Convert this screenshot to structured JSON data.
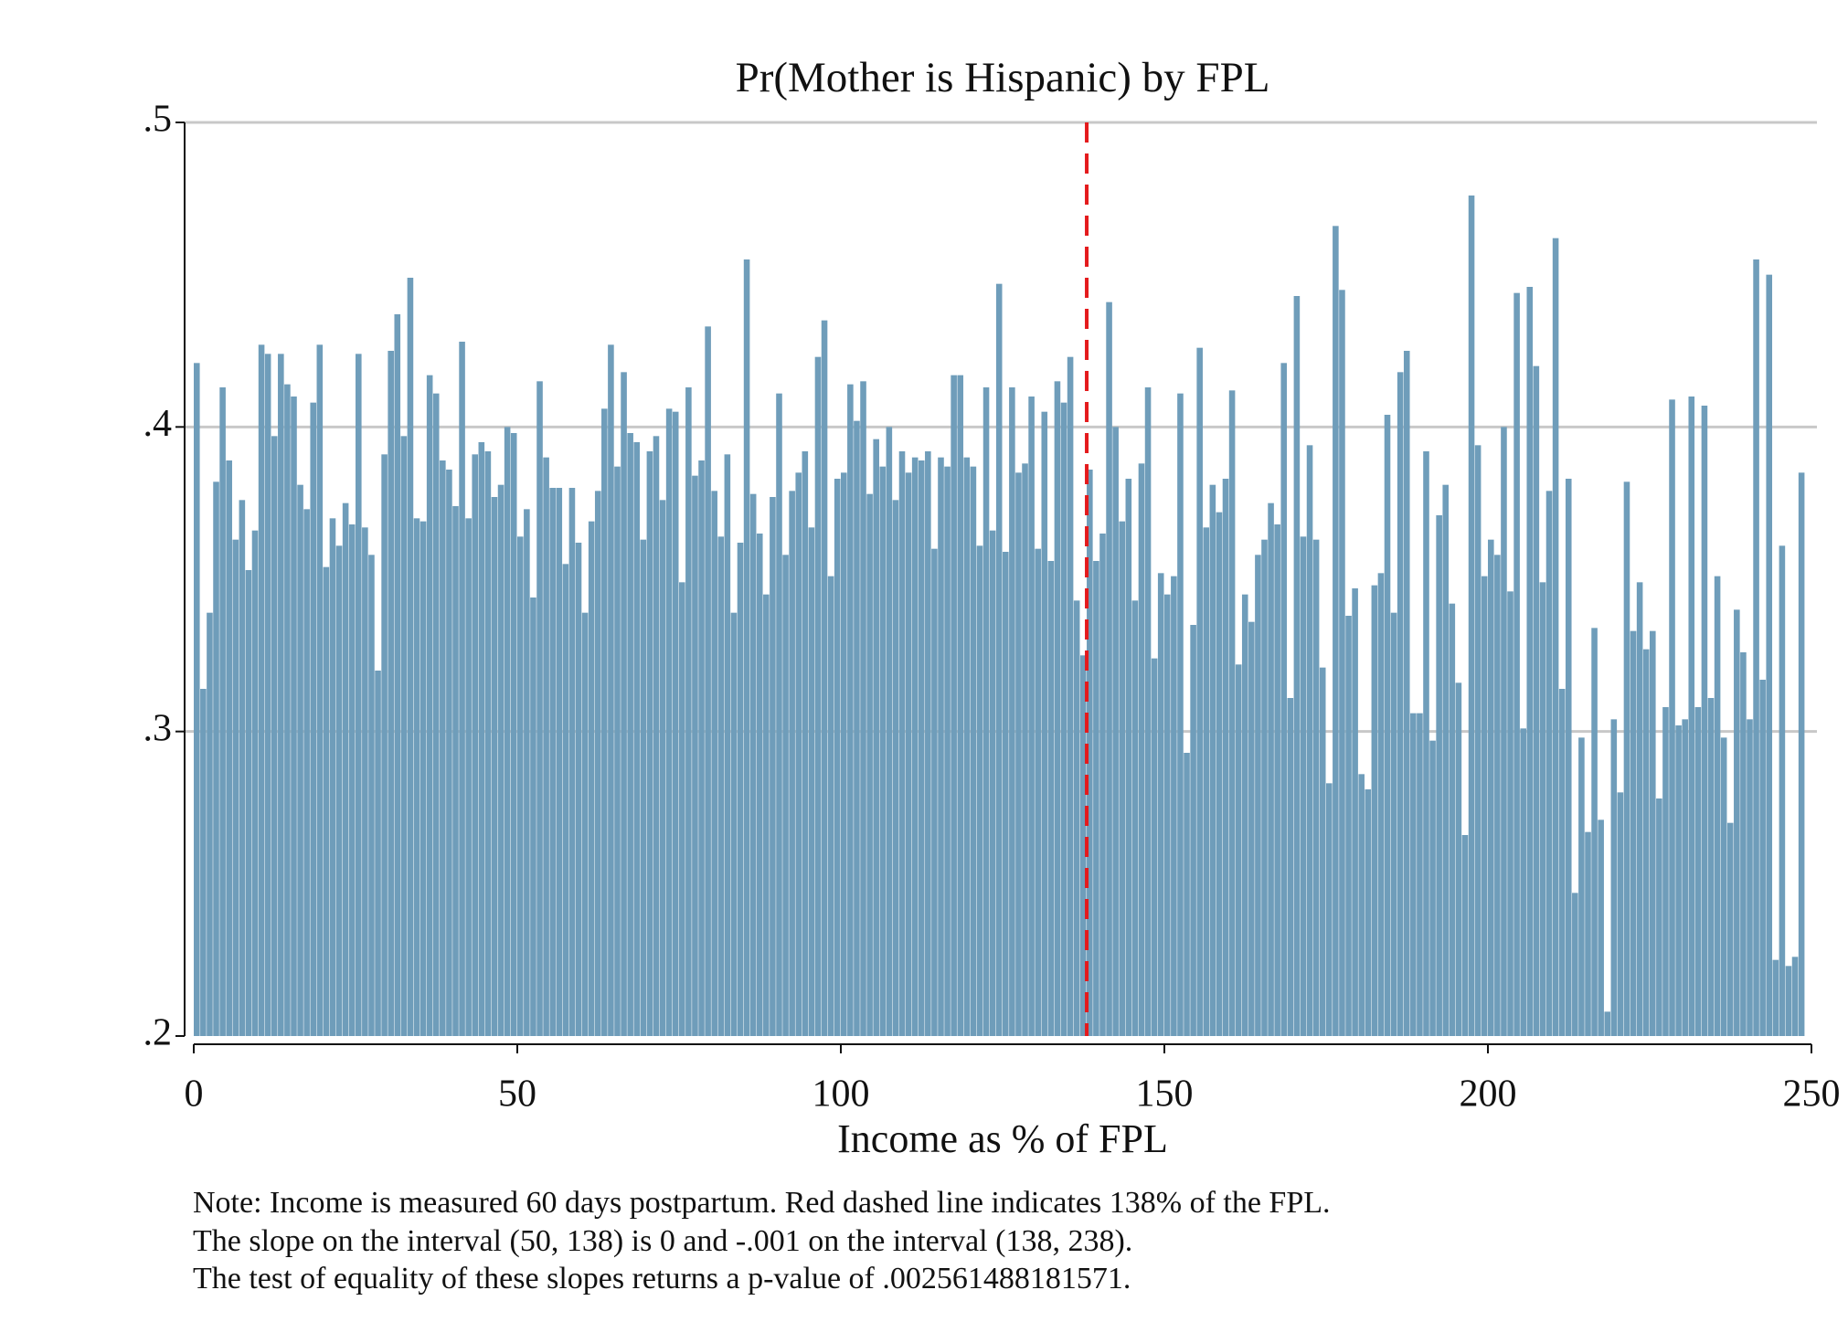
{
  "chart_data": {
    "type": "bar",
    "title": "Pr(Mother is Hispanic) by FPL",
    "xlabel": "Income as % of FPL",
    "notes": [
      "Note: Income is measured 60 days postpartum. Red dashed line indicates 138% of the FPL.",
      "The slope on the interval (50, 138) is 0 and -.001 on the interval (138, 238).",
      "The test of equality of these slopes returns a p-value of .002561488181571."
    ],
    "color": "#6f9dba",
    "x": [
      0,
      1,
      2,
      3,
      4,
      5,
      6,
      7,
      8,
      9,
      10,
      11,
      12,
      13,
      14,
      15,
      16,
      17,
      18,
      19,
      20,
      21,
      22,
      23,
      24,
      25,
      26,
      27,
      28,
      29,
      30,
      31,
      32,
      33,
      34,
      35,
      36,
      37,
      38,
      39,
      40,
      41,
      42,
      43,
      44,
      45,
      46,
      47,
      48,
      49,
      50,
      51,
      52,
      53,
      54,
      55,
      56,
      57,
      58,
      59,
      60,
      61,
      62,
      63,
      64,
      65,
      66,
      67,
      68,
      69,
      70,
      71,
      72,
      73,
      74,
      75,
      76,
      77,
      78,
      79,
      80,
      81,
      82,
      83,
      84,
      85,
      86,
      87,
      88,
      89,
      90,
      91,
      92,
      93,
      94,
      95,
      96,
      97,
      98,
      99,
      100,
      101,
      102,
      103,
      104,
      105,
      106,
      107,
      108,
      109,
      110,
      111,
      112,
      113,
      114,
      115,
      116,
      117,
      118,
      119,
      120,
      121,
      122,
      123,
      124,
      125,
      126,
      127,
      128,
      129,
      130,
      131,
      132,
      133,
      134,
      135,
      136,
      137,
      138,
      139,
      140,
      141,
      142,
      143,
      144,
      145,
      146,
      147,
      148,
      149,
      150,
      151,
      152,
      153,
      154,
      155,
      156,
      157,
      158,
      159,
      160,
      161,
      162,
      163,
      164,
      165,
      166,
      167,
      168,
      169,
      170,
      171,
      172,
      173,
      174,
      175,
      176,
      177,
      178,
      179,
      180,
      181,
      182,
      183,
      184,
      185,
      186,
      187,
      188,
      189,
      190,
      191,
      192,
      193,
      194,
      195,
      196,
      197,
      198,
      199,
      200,
      201,
      202,
      203,
      204,
      205,
      206,
      207,
      208,
      209,
      210,
      211,
      212,
      213,
      214,
      215,
      216,
      217,
      218,
      219,
      220,
      221,
      222,
      223,
      224,
      225,
      226,
      227,
      228,
      229,
      230,
      231,
      232,
      233,
      234,
      235,
      236,
      237,
      238,
      239,
      240,
      241,
      242,
      243,
      244,
      245,
      246,
      247,
      248
    ],
    "values": [
      0.421,
      0.314,
      0.339,
      0.382,
      0.413,
      0.389,
      0.363,
      0.376,
      0.353,
      0.366,
      0.427,
      0.424,
      0.397,
      0.424,
      0.414,
      0.41,
      0.381,
      0.373,
      0.408,
      0.427,
      0.354,
      0.37,
      0.361,
      0.375,
      0.368,
      0.424,
      0.367,
      0.358,
      0.32,
      0.391,
      0.425,
      0.437,
      0.397,
      0.449,
      0.37,
      0.369,
      0.417,
      0.411,
      0.389,
      0.386,
      0.374,
      0.428,
      0.37,
      0.391,
      0.395,
      0.392,
      0.377,
      0.381,
      0.4,
      0.398,
      0.364,
      0.373,
      0.344,
      0.415,
      0.39,
      0.38,
      0.38,
      0.355,
      0.38,
      0.362,
      0.339,
      0.369,
      0.379,
      0.406,
      0.427,
      0.387,
      0.418,
      0.398,
      0.395,
      0.363,
      0.392,
      0.397,
      0.376,
      0.406,
      0.405,
      0.349,
      0.413,
      0.384,
      0.389,
      0.433,
      0.379,
      0.364,
      0.391,
      0.339,
      0.362,
      0.455,
      0.378,
      0.365,
      0.345,
      0.377,
      0.411,
      0.358,
      0.379,
      0.385,
      0.392,
      0.367,
      0.423,
      0.435,
      0.351,
      0.383,
      0.385,
      0.414,
      0.402,
      0.415,
      0.378,
      0.396,
      0.387,
      0.4,
      0.376,
      0.392,
      0.385,
      0.39,
      0.389,
      0.392,
      0.36,
      0.39,
      0.387,
      0.417,
      0.417,
      0.39,
      0.387,
      0.361,
      0.413,
      0.366,
      0.447,
      0.359,
      0.413,
      0.385,
      0.388,
      0.41,
      0.36,
      0.405,
      0.356,
      0.415,
      0.408,
      0.423,
      0.343,
      0.325,
      0.386,
      0.356,
      0.365,
      0.441,
      0.4,
      0.369,
      0.383,
      0.343,
      0.388,
      0.413,
      0.324,
      0.352,
      0.345,
      0.351,
      0.411,
      0.293,
      0.335,
      0.426,
      0.367,
      0.381,
      0.372,
      0.383,
      0.412,
      0.322,
      0.345,
      0.336,
      0.358,
      0.363,
      0.375,
      0.368,
      0.421,
      0.311,
      0.443,
      0.364,
      0.394,
      0.363,
      0.321,
      0.283,
      0.466,
      0.445,
      0.338,
      0.347,
      0.286,
      0.281,
      0.348,
      0.352,
      0.404,
      0.339,
      0.418,
      0.425,
      0.306,
      0.306,
      0.392,
      0.297,
      0.371,
      0.381,
      0.342,
      0.316,
      0.266,
      0.476,
      0.394,
      0.351,
      0.363,
      0.358,
      0.4,
      0.346,
      0.444,
      0.301,
      0.446,
      0.42,
      0.349,
      0.379,
      0.462,
      0.314,
      0.383,
      0.247,
      0.298,
      0.267,
      0.334,
      0.271,
      0.208,
      0.304,
      0.28,
      0.382,
      0.333,
      0.349,
      0.327,
      0.333,
      0.278,
      0.308,
      0.409,
      0.302,
      0.304,
      0.41,
      0.308,
      0.407,
      0.311,
      0.351,
      0.298,
      0.27,
      0.34,
      0.326,
      0.304,
      0.455,
      0.317,
      0.45,
      0.225,
      0.361,
      0.223,
      0.226,
      0.385
    ],
    "xlim": [
      0,
      250
    ],
    "xticks": [
      0,
      50,
      100,
      150,
      200,
      250
    ],
    "ylim": [
      0.2,
      0.5
    ],
    "yticks": [
      {
        "value": 0.2,
        "label": ".2"
      },
      {
        "value": 0.3,
        "label": ".3"
      },
      {
        "value": 0.4,
        "label": ".4"
      },
      {
        "value": 0.5,
        "label": ".5"
      }
    ],
    "grid": true,
    "vline": {
      "x": 138,
      "color": "#e41a1c",
      "style": "dashed"
    }
  }
}
